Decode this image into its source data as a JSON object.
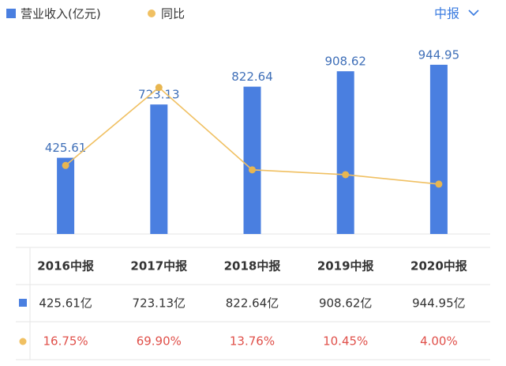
{
  "chart_data": {
    "type": "bar-line",
    "categories": [
      "2016中报",
      "2017中报",
      "2018中报",
      "2019中报",
      "2020中报"
    ],
    "series": [
      {
        "name": "营业收入(亿元)",
        "color": "#4a7fe0",
        "type": "bar",
        "values": [
          425.61,
          723.13,
          822.64,
          908.62,
          944.95
        ]
      },
      {
        "name": "同比",
        "color": "#f0c062",
        "type": "line",
        "axis": "y2",
        "values": [
          16.75,
          69.9,
          13.76,
          10.45,
          4.0
        ]
      }
    ],
    "ylim": [
      0,
      1130
    ],
    "y2lim": [
      -30,
      108
    ],
    "period_selector": "中报",
    "table": {
      "rows": [
        [
          "425.61亿",
          "723.13亿",
          "822.64亿",
          "908.62亿",
          "944.95亿"
        ],
        [
          "16.75%",
          "69.90%",
          "13.76%",
          "10.45%",
          "4.00%"
        ]
      ],
      "rate_color": "#e0504a"
    }
  }
}
